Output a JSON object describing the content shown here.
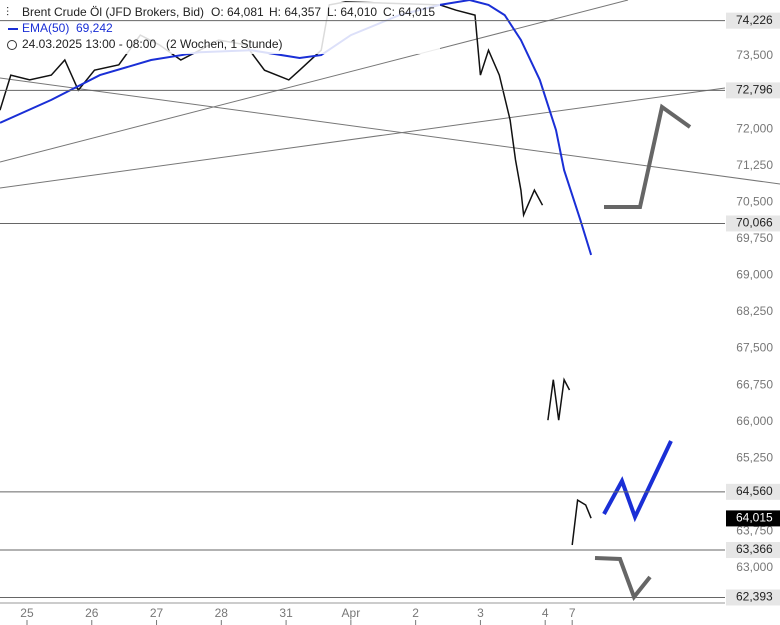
{
  "chart_data": {
    "type": "line",
    "title": "Brent Crude Öl (JFD Brokers, Bid)",
    "ohlc": [
      "O: 64,081",
      "H: 64,357",
      "L: 64,010",
      "C: 64,015"
    ],
    "indicator": {
      "name": "EMA(50)",
      "value": {
        "value": 69.242,
        "label": "69,242"
      }
    },
    "period": "24.03.2025 13:00 - 08:00",
    "interval": "(2 Wochen, 1 Stunde)",
    "xlim": [
      0,
      289
    ],
    "xticks": [
      {
        "value": 10,
        "label": "25"
      },
      {
        "value": 34,
        "label": "26"
      },
      {
        "value": 58,
        "label": "27"
      },
      {
        "value": 82,
        "label": "28"
      },
      {
        "value": 106,
        "label": "31"
      },
      {
        "value": 130,
        "label": "Apr"
      },
      {
        "value": 154,
        "label": "2"
      },
      {
        "value": 178,
        "label": "3"
      },
      {
        "value": 202,
        "label": "4"
      },
      {
        "value": 212,
        "label": "7"
      }
    ],
    "ylim": [
      62.3,
      74.65
    ],
    "yticks": [
      {
        "value": 73.5,
        "label": "73,500"
      },
      {
        "value": 72,
        "label": "72,000"
      },
      {
        "value": 71.25,
        "label": "71,250"
      },
      {
        "value": 70.5,
        "label": "70,500"
      },
      {
        "value": 69.75,
        "label": "69,750"
      },
      {
        "value": 69,
        "label": "69,000"
      },
      {
        "value": 68.25,
        "label": "68,250"
      },
      {
        "value": 67.5,
        "label": "67,500"
      },
      {
        "value": 66.75,
        "label": "66,750"
      },
      {
        "value": 66,
        "label": "66,000"
      },
      {
        "value": 65.25,
        "label": "65,250"
      },
      {
        "value": 63.75,
        "label": "63,750"
      },
      {
        "value": 63,
        "label": "63,000"
      }
    ],
    "levels": [
      {
        "value": 74.226,
        "label": "74,226"
      },
      {
        "value": 72.796,
        "label": "72,796"
      },
      {
        "value": 70.066,
        "label": "70,066"
      },
      {
        "value": 64.56,
        "label": "64,560"
      },
      {
        "value": 63.366,
        "label": "63,366"
      },
      {
        "value": 62.393,
        "label": "62,393"
      }
    ],
    "last_price": {
      "value": 64.015,
      "label": "64,015"
    },
    "series": [
      {
        "name": "Price",
        "color": "#111111",
        "x": [
          0,
          4,
          11,
          19,
          24,
          29,
          35,
          44,
          52,
          59,
          67,
          74,
          81,
          91,
          98,
          107,
          111,
          119,
          122,
          128,
          163,
          169,
          176,
          178,
          181,
          185,
          189,
          191,
          193,
          194,
          198,
          201,
          201,
          203,
          205,
          207,
          209,
          211,
          211,
          212,
          214,
          217,
          219
        ],
        "values": [
          72.39,
          73.11,
          73.01,
          73.11,
          73.42,
          72.8,
          73.21,
          73.32,
          73.93,
          73.73,
          73.42,
          73.62,
          73.83,
          73.73,
          73.21,
          73.01,
          73.21,
          73.62,
          74.55,
          74.61,
          74.55,
          74.44,
          74.34,
          73.11,
          73.62,
          73.11,
          72.19,
          71.37,
          70.75,
          70.24,
          70.75,
          70.44,
          null,
          66.03,
          66.86,
          66.03,
          66.86,
          66.65,
          null,
          63.47,
          64.39,
          64.29,
          64.02
        ]
      },
      {
        "name": "EMA(50)",
        "color": "#1a2fd6",
        "x": [
          0,
          19,
          37,
          56,
          74,
          93,
          111,
          119,
          130,
          148,
          163,
          174,
          181,
          187,
          193,
          200,
          206,
          209,
          215,
          219
        ],
        "values": [
          72.13,
          72.6,
          73.11,
          73.42,
          73.58,
          73.62,
          73.46,
          73.52,
          73.93,
          74.34,
          74.55,
          74.65,
          74.55,
          74.34,
          73.83,
          73.01,
          71.98,
          71.16,
          70.14,
          69.42
        ]
      }
    ]
  }
}
